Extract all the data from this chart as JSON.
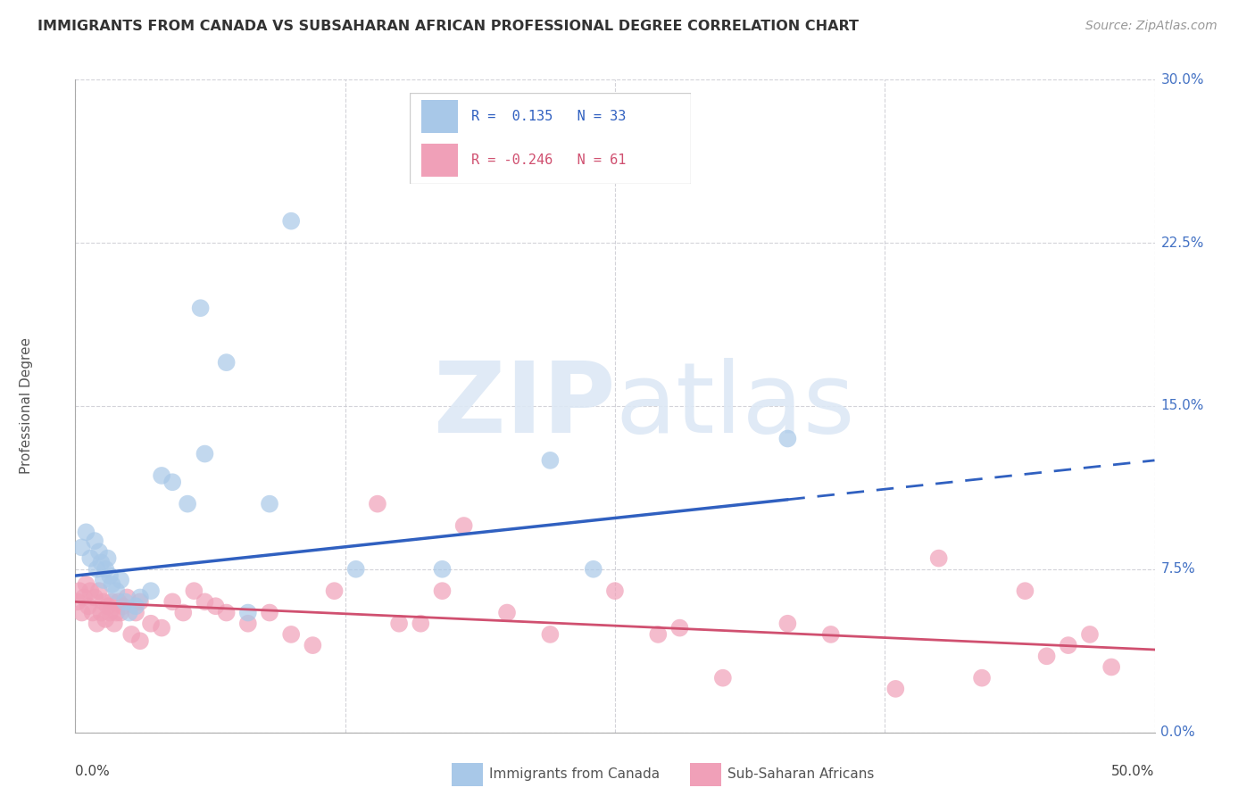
{
  "title": "IMMIGRANTS FROM CANADA VS SUBSAHARAN AFRICAN PROFESSIONAL DEGREE CORRELATION CHART",
  "source": "Source: ZipAtlas.com",
  "ylabel": "Professional Degree",
  "blue_color": "#a8c8e8",
  "pink_color": "#f0a0b8",
  "line_blue": "#3060c0",
  "line_pink": "#d05070",
  "blue_line_start_y": 7.2,
  "blue_line_end_y": 12.5,
  "blue_solid_end_x": 33,
  "pink_line_start_y": 6.0,
  "pink_line_end_y": 3.8,
  "canada_x": [
    0.3,
    0.5,
    0.7,
    0.9,
    1.0,
    1.1,
    1.2,
    1.3,
    1.4,
    1.5,
    1.6,
    1.7,
    1.9,
    2.1,
    2.3,
    2.5,
    2.8,
    3.5,
    4.5,
    5.2,
    5.8,
    7.0,
    8.0,
    10.0,
    13.0,
    17.0,
    22.0,
    24.0,
    33.0,
    3.0,
    4.0,
    6.0,
    9.0
  ],
  "canada_y": [
    8.5,
    9.2,
    8.0,
    8.8,
    7.5,
    8.3,
    7.8,
    7.0,
    7.5,
    8.0,
    7.2,
    6.8,
    6.5,
    7.0,
    6.0,
    5.5,
    5.8,
    6.5,
    11.5,
    10.5,
    19.5,
    17.0,
    5.5,
    23.5,
    7.5,
    7.5,
    12.5,
    7.5,
    13.5,
    6.2,
    11.8,
    12.8,
    10.5
  ],
  "africa_x": [
    0.1,
    0.2,
    0.3,
    0.4,
    0.5,
    0.6,
    0.7,
    0.8,
    0.9,
    1.0,
    1.1,
    1.2,
    1.3,
    1.4,
    1.5,
    1.6,
    1.7,
    1.8,
    1.9,
    2.0,
    2.1,
    2.2,
    2.4,
    2.6,
    2.8,
    3.0,
    3.5,
    4.0,
    4.5,
    5.0,
    5.5,
    6.0,
    7.0,
    8.0,
    9.0,
    10.0,
    12.0,
    14.0,
    15.0,
    17.0,
    18.0,
    20.0,
    22.0,
    25.0,
    27.0,
    30.0,
    33.0,
    35.0,
    38.0,
    40.0,
    42.0,
    44.0,
    46.0,
    47.0,
    48.0,
    3.0,
    6.5,
    11.0,
    16.0,
    28.0,
    45.0
  ],
  "africa_y": [
    6.0,
    6.5,
    5.5,
    6.2,
    6.8,
    5.8,
    6.5,
    5.5,
    6.2,
    5.0,
    6.5,
    5.5,
    6.0,
    5.2,
    5.8,
    5.5,
    6.0,
    5.0,
    5.5,
    6.0,
    5.5,
    5.8,
    6.2,
    4.5,
    5.5,
    6.0,
    5.0,
    4.8,
    6.0,
    5.5,
    6.5,
    6.0,
    5.5,
    5.0,
    5.5,
    4.5,
    6.5,
    10.5,
    5.0,
    6.5,
    9.5,
    5.5,
    4.5,
    6.5,
    4.5,
    2.5,
    5.0,
    4.5,
    2.0,
    8.0,
    2.5,
    6.5,
    4.0,
    4.5,
    3.0,
    4.2,
    5.8,
    4.0,
    5.0,
    4.8,
    3.5
  ],
  "xlim": [
    0,
    50
  ],
  "ylim": [
    0,
    30
  ],
  "xtick_positions": [
    0,
    12.5,
    25.0,
    37.5,
    50.0
  ],
  "ytick_positions": [
    0,
    7.5,
    15.0,
    22.5,
    30.0
  ],
  "ytick_labels": [
    "0.0%",
    "7.5%",
    "15.0%",
    "22.5%",
    "30.0%"
  ]
}
